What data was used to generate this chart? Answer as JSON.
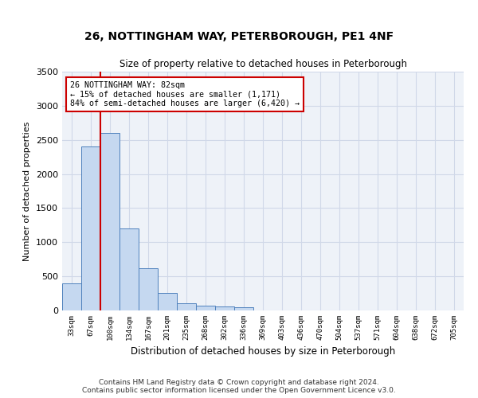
{
  "title_line1": "26, NOTTINGHAM WAY, PETERBOROUGH, PE1 4NF",
  "title_line2": "Size of property relative to detached houses in Peterborough",
  "xlabel": "Distribution of detached houses by size in Peterborough",
  "ylabel": "Number of detached properties",
  "categories": [
    "33sqm",
    "67sqm",
    "100sqm",
    "134sqm",
    "167sqm",
    "201sqm",
    "235sqm",
    "268sqm",
    "302sqm",
    "336sqm",
    "369sqm",
    "403sqm",
    "436sqm",
    "470sqm",
    "504sqm",
    "537sqm",
    "571sqm",
    "604sqm",
    "638sqm",
    "672sqm",
    "705sqm"
  ],
  "values": [
    400,
    2400,
    2600,
    1200,
    620,
    260,
    100,
    70,
    60,
    50,
    0,
    0,
    0,
    0,
    0,
    0,
    0,
    0,
    0,
    0,
    0
  ],
  "bar_color": "#c5d8f0",
  "bar_edge_color": "#4f81bd",
  "vline_x": 1.5,
  "vline_color": "#cc0000",
  "ylim": [
    0,
    3500
  ],
  "yticks": [
    0,
    500,
    1000,
    1500,
    2000,
    2500,
    3000,
    3500
  ],
  "annotation_text": "26 NOTTINGHAM WAY: 82sqm\n← 15% of detached houses are smaller (1,171)\n84% of semi-detached houses are larger (6,420) →",
  "annotation_box_color": "#ffffff",
  "annotation_box_edgecolor": "#cc0000",
  "footer_text": "Contains HM Land Registry data © Crown copyright and database right 2024.\nContains public sector information licensed under the Open Government Licence v3.0.",
  "grid_color": "#d0d8e8",
  "background_color": "#eef2f8",
  "title_fontsize": 10,
  "subtitle_fontsize": 8.5,
  "bar_label_fontsize": 7,
  "ylabel_fontsize": 8,
  "xlabel_fontsize": 8.5,
  "footer_fontsize": 6.5
}
